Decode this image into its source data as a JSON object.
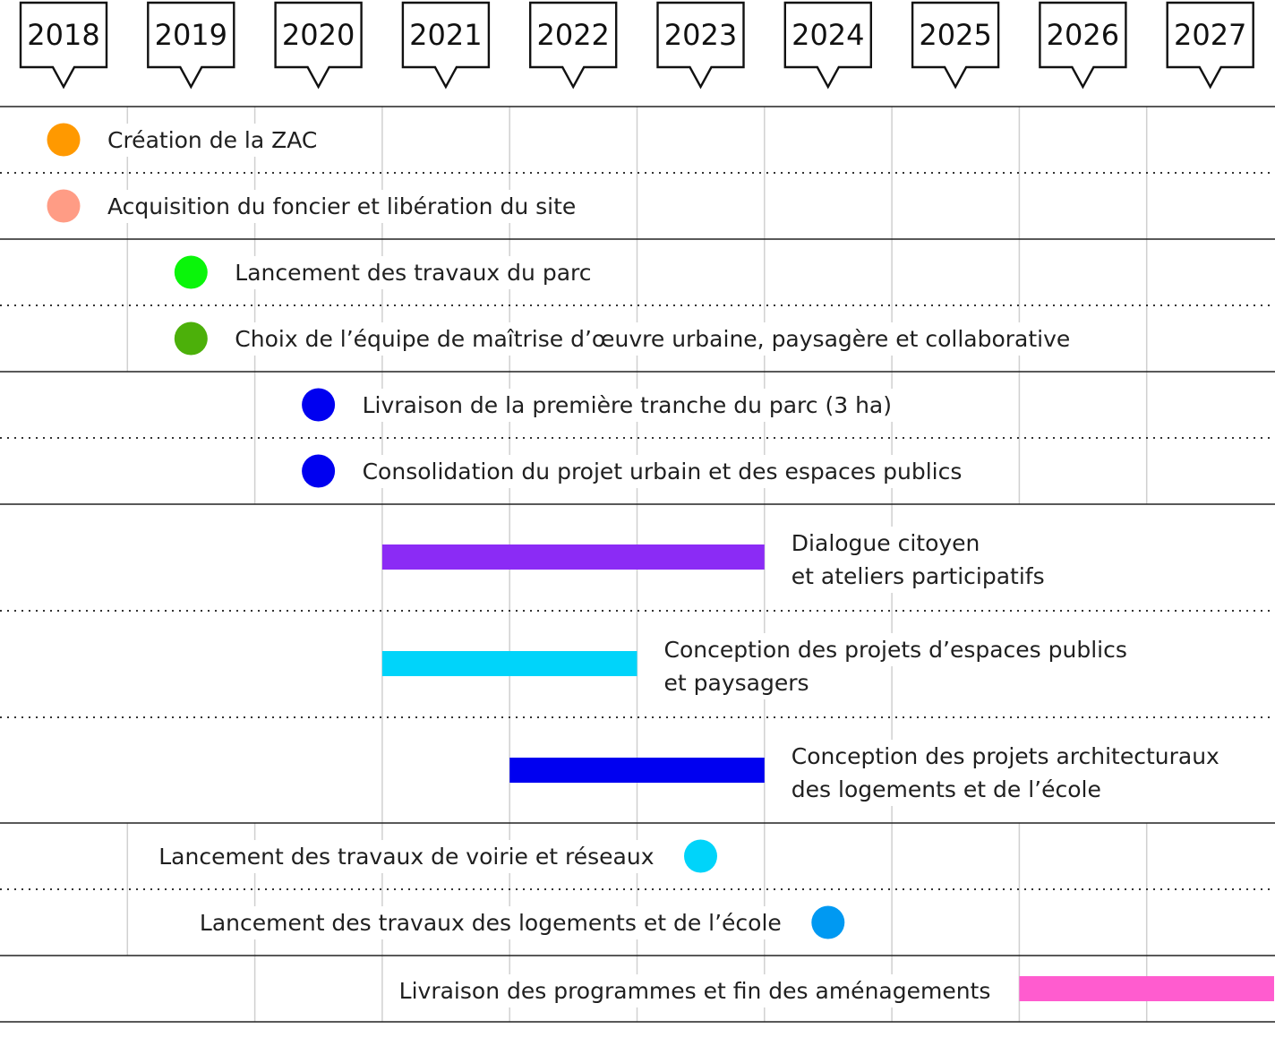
{
  "years": [
    "2018",
    "2019",
    "2020",
    "2021",
    "2022",
    "2023",
    "2024",
    "2025",
    "2026",
    "2027"
  ],
  "milestones": [
    {
      "type": "dot",
      "label": "Création de la ZAC",
      "year": 2018,
      "color": "#FF9900"
    },
    {
      "type": "dot",
      "label": "Acquisition du foncier et libération du site",
      "year": 2018,
      "color": "#FF9C85"
    },
    {
      "type": "dot",
      "label": "Lancement des travaux du parc",
      "year": 2019,
      "color": "#0AF50A"
    },
    {
      "type": "dot",
      "label": "Choix de l’équipe de maîtrise d’œuvre urbaine, paysagère et collaborative",
      "year": 2019,
      "color": "#4CB00A"
    },
    {
      "type": "dot",
      "label": "Livraison de la première tranche du parc (3 ha)",
      "year": 2020,
      "color": "#0000F0"
    },
    {
      "type": "dot",
      "label": "Consolidation du projet urbain et des espaces publics",
      "year": 2020,
      "color": "#0000F0"
    },
    {
      "type": "bar",
      "label_lines": [
        "Dialogue citoyen",
        "et ateliers participatifs"
      ],
      "start": 2021,
      "end": 2024,
      "color": "#8B2BF5"
    },
    {
      "type": "bar",
      "label_lines": [
        "Conception des projets d’espaces publics",
        "et paysagers"
      ],
      "start": 2021,
      "end": 2023,
      "color": "#00D4FA"
    },
    {
      "type": "bar",
      "label_lines": [
        "Conception des projets architecturaux",
        "des logements et de l’école"
      ],
      "start": 2022,
      "end": 2024,
      "color": "#0000F0"
    },
    {
      "type": "dot",
      "label": "Lancement des travaux de voirie et réseaux",
      "year": 2023,
      "color": "#00D4FA",
      "label_side": "left"
    },
    {
      "type": "dot",
      "label": "Lancement des travaux des logements et de l’école",
      "year": 2024,
      "color": "#0099F2",
      "label_side": "left"
    },
    {
      "type": "bar",
      "label": "Livraison des programmes et fin des aménagements",
      "start": 2026,
      "end": 2028,
      "color": "#FF5CCF",
      "label_side": "left"
    }
  ]
}
